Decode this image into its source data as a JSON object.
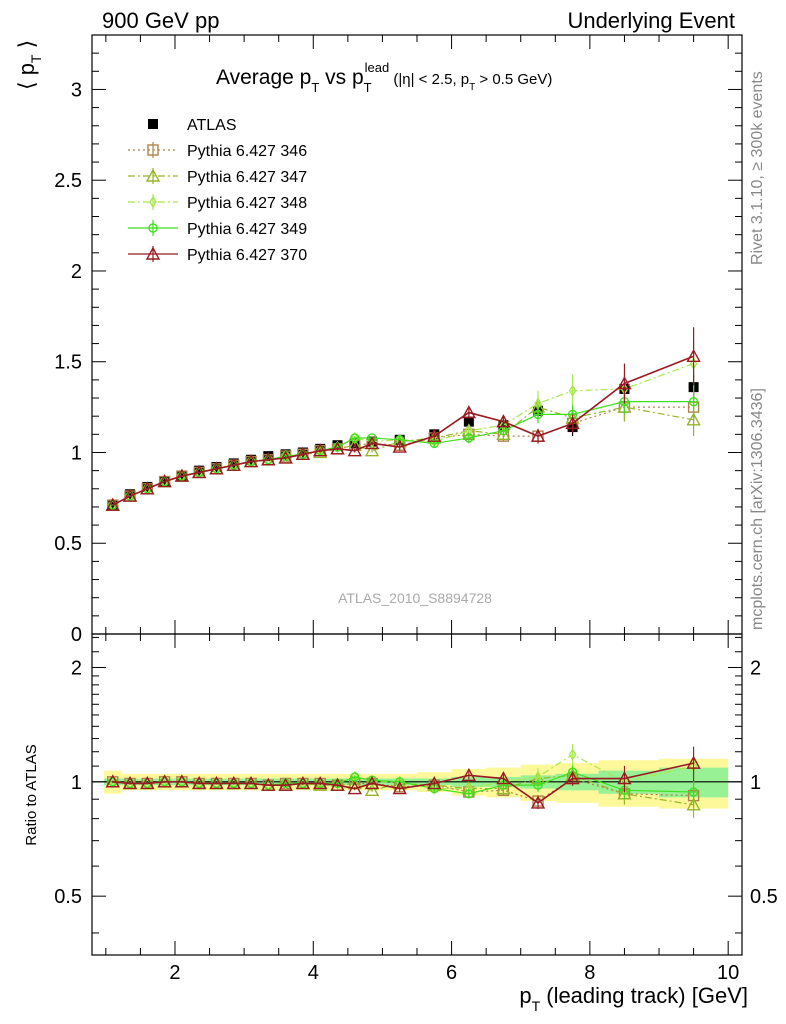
{
  "header": {
    "left": "900 GeV pp",
    "right": "Underlying Event"
  },
  "side_labels": {
    "rivet": "Rivet 3.1.10, ≥ 300k events",
    "mcplots": "mcplots.cern.ch [arXiv:1306.3436]"
  },
  "watermark": "ATLAS_2010_S8894728",
  "chart_data": [
    {
      "type": "scatter",
      "title": "Average p_T vs p_T^lead (|η| < 2.5, p_T > 0.5 GeV)",
      "xlabel": "p_T (leading track) [GeV]",
      "ylabel": "⟨ p_T ⟩",
      "xlim": [
        0.8,
        10.2
      ],
      "ylim": [
        0,
        3.3
      ],
      "y_ticks": [
        0,
        0.5,
        1,
        1.5,
        2,
        2.5,
        3
      ],
      "y_tick_labels": [
        "0",
        "0.5",
        "1",
        "1.5",
        "2",
        "2.5",
        "3"
      ],
      "legend_position": "top-left",
      "x": [
        1.1,
        1.35,
        1.6,
        1.85,
        2.1,
        2.35,
        2.6,
        2.85,
        3.1,
        3.35,
        3.6,
        3.85,
        4.1,
        4.35,
        4.6,
        4.85,
        5.25,
        5.75,
        6.25,
        6.75,
        7.25,
        7.75,
        8.5,
        9.5
      ],
      "series": [
        {
          "name": "ATLAS",
          "color": "#000000",
          "marker": "filled-square",
          "line": "none",
          "values": [
            0.71,
            0.77,
            0.81,
            0.84,
            0.87,
            0.9,
            0.92,
            0.94,
            0.96,
            0.98,
            0.99,
            1.0,
            1.02,
            1.04,
            1.05,
            1.06,
            1.07,
            1.1,
            1.17,
            1.15,
            1.23,
            1.14,
            1.35,
            1.36
          ],
          "errors": [
            0.01,
            0.01,
            0.01,
            0.01,
            0.01,
            0.01,
            0.01,
            0.01,
            0.01,
            0.01,
            0.01,
            0.01,
            0.01,
            0.01,
            0.01,
            0.02,
            0.02,
            0.02,
            0.03,
            0.03,
            0.04,
            0.05,
            0.06,
            0.07
          ]
        },
        {
          "name": "Pythia 6.427 346",
          "color": "#b0814a",
          "marker": "open-square",
          "line": "dotted",
          "values": [
            0.71,
            0.76,
            0.8,
            0.84,
            0.87,
            0.89,
            0.91,
            0.93,
            0.95,
            0.96,
            0.98,
            0.99,
            1.01,
            1.02,
            1.04,
            1.05,
            1.04,
            1.08,
            1.1,
            1.09,
            1.09,
            1.16,
            1.25,
            1.25
          ],
          "errors": [
            0.005,
            0.005,
            0.005,
            0.005,
            0.005,
            0.005,
            0.005,
            0.005,
            0.005,
            0.005,
            0.01,
            0.01,
            0.01,
            0.01,
            0.01,
            0.01,
            0.02,
            0.02,
            0.03,
            0.03,
            0.04,
            0.05,
            0.07,
            0.1
          ]
        },
        {
          "name": "Pythia 6.427 347",
          "color": "#97b52a",
          "marker": "open-triangle",
          "line": "dashdot",
          "values": [
            0.71,
            0.76,
            0.8,
            0.84,
            0.87,
            0.89,
            0.91,
            0.93,
            0.95,
            0.96,
            0.97,
            0.99,
            1.0,
            1.02,
            1.04,
            1.01,
            1.06,
            1.08,
            1.12,
            1.1,
            1.25,
            1.19,
            1.25,
            1.18
          ],
          "errors": [
            0.005,
            0.005,
            0.005,
            0.005,
            0.005,
            0.005,
            0.005,
            0.005,
            0.005,
            0.005,
            0.01,
            0.01,
            0.01,
            0.01,
            0.01,
            0.01,
            0.02,
            0.02,
            0.03,
            0.03,
            0.05,
            0.05,
            0.08,
            0.09
          ]
        },
        {
          "name": "Pythia 6.427 348",
          "color": "#a8e84e",
          "marker": "open-diamond",
          "line": "dashdot",
          "values": [
            0.71,
            0.76,
            0.8,
            0.84,
            0.87,
            0.89,
            0.91,
            0.93,
            0.95,
            0.96,
            0.98,
            0.99,
            1.01,
            1.03,
            1.08,
            1.06,
            1.07,
            1.06,
            1.12,
            1.15,
            1.27,
            1.34,
            1.35,
            1.49
          ],
          "errors": [
            0.005,
            0.005,
            0.005,
            0.005,
            0.005,
            0.005,
            0.005,
            0.005,
            0.005,
            0.005,
            0.01,
            0.01,
            0.01,
            0.01,
            0.01,
            0.01,
            0.02,
            0.02,
            0.03,
            0.04,
            0.07,
            0.09,
            0.1,
            0.14
          ]
        },
        {
          "name": "Pythia 6.427 349",
          "color": "#3fe01f",
          "marker": "open-circle-cross",
          "line": "solid",
          "values": [
            0.71,
            0.76,
            0.8,
            0.84,
            0.87,
            0.89,
            0.91,
            0.93,
            0.95,
            0.96,
            0.98,
            0.99,
            1.01,
            1.03,
            1.08,
            1.08,
            1.07,
            1.05,
            1.08,
            1.12,
            1.21,
            1.21,
            1.28,
            1.28
          ],
          "errors": [
            0.005,
            0.005,
            0.005,
            0.005,
            0.005,
            0.005,
            0.005,
            0.005,
            0.005,
            0.005,
            0.01,
            0.01,
            0.01,
            0.01,
            0.01,
            0.01,
            0.02,
            0.02,
            0.03,
            0.03,
            0.05,
            0.05,
            0.07,
            0.09
          ]
        },
        {
          "name": "Pythia 6.427 370",
          "color": "#9a1a22",
          "marker": "open-triangle",
          "line": "solid",
          "values": [
            0.71,
            0.76,
            0.8,
            0.84,
            0.87,
            0.89,
            0.91,
            0.93,
            0.95,
            0.96,
            0.97,
            0.99,
            1.01,
            1.02,
            1.01,
            1.05,
            1.03,
            1.09,
            1.22,
            1.17,
            1.09,
            1.16,
            1.38,
            1.53
          ],
          "errors": [
            0.005,
            0.005,
            0.005,
            0.005,
            0.005,
            0.005,
            0.005,
            0.005,
            0.005,
            0.005,
            0.01,
            0.01,
            0.01,
            0.01,
            0.01,
            0.01,
            0.02,
            0.02,
            0.03,
            0.03,
            0.04,
            0.05,
            0.11,
            0.16
          ]
        }
      ]
    },
    {
      "type": "scatter",
      "title": "",
      "xlabel": "p_T (leading track) [GeV]",
      "ylabel": "Ratio to ATLAS",
      "xlim": [
        0.8,
        10.2
      ],
      "ylim": [
        0.35,
        2.45
      ],
      "y_scale": "log",
      "y_ticks": [
        0.5,
        1,
        2
      ],
      "y_tick_labels": [
        "0.5",
        "1",
        "2"
      ],
      "x_ticks": [
        2,
        4,
        6,
        8,
        10
      ],
      "x_tick_labels": [
        "2",
        "4",
        "6",
        "8",
        "10"
      ],
      "reference_band_inner_half_width": [
        0.02,
        0.02,
        0.02,
        0.02,
        0.02,
        0.02,
        0.02,
        0.02,
        0.02,
        0.02,
        0.02,
        0.02,
        0.02,
        0.02,
        0.02,
        0.02,
        0.02,
        0.02,
        0.03,
        0.03,
        0.04,
        0.05,
        0.07,
        0.09
      ],
      "reference_band_outer_half_width": [
        0.07,
        0.05,
        0.05,
        0.05,
        0.05,
        0.05,
        0.05,
        0.05,
        0.05,
        0.05,
        0.05,
        0.05,
        0.05,
        0.05,
        0.05,
        0.05,
        0.05,
        0.06,
        0.08,
        0.09,
        0.11,
        0.12,
        0.14,
        0.15
      ],
      "series": [
        {
          "name": "Pythia 6.427 346",
          "values": [
            1.0,
            0.99,
            0.99,
            1.0,
            1.0,
            0.99,
            0.99,
            0.99,
            0.99,
            0.98,
            0.99,
            0.99,
            0.99,
            0.98,
            0.99,
            0.99,
            0.97,
            0.98,
            0.94,
            0.95,
            0.89,
            1.02,
            0.93,
            0.92
          ]
        },
        {
          "name": "Pythia 6.427 347",
          "values": [
            1.0,
            0.99,
            0.99,
            1.0,
            1.0,
            0.99,
            0.99,
            0.99,
            0.99,
            0.98,
            0.98,
            0.99,
            0.98,
            0.98,
            0.99,
            0.95,
            0.99,
            0.98,
            0.96,
            0.96,
            1.02,
            1.04,
            0.93,
            0.87
          ]
        },
        {
          "name": "Pythia 6.427 348",
          "values": [
            1.0,
            0.99,
            0.99,
            1.0,
            1.0,
            0.99,
            0.99,
            0.99,
            0.99,
            0.98,
            0.99,
            0.99,
            0.99,
            0.99,
            1.03,
            1.0,
            1.0,
            0.96,
            0.96,
            1.0,
            1.03,
            1.18,
            1.0,
            1.1
          ]
        },
        {
          "name": "Pythia 6.427 349",
          "values": [
            1.0,
            0.99,
            0.99,
            1.0,
            1.0,
            0.99,
            0.99,
            0.99,
            0.99,
            0.98,
            0.99,
            0.99,
            0.99,
            0.99,
            1.03,
            1.01,
            1.0,
            0.96,
            0.93,
            0.98,
            0.98,
            1.06,
            0.95,
            0.94
          ]
        },
        {
          "name": "Pythia 6.427 370",
          "values": [
            1.0,
            0.99,
            0.99,
            1.0,
            1.0,
            0.99,
            0.99,
            0.99,
            0.99,
            0.98,
            0.98,
            0.99,
            0.99,
            0.98,
            0.96,
            0.99,
            0.96,
            0.99,
            1.04,
            1.02,
            0.88,
            1.02,
            1.02,
            1.12
          ]
        }
      ]
    }
  ]
}
